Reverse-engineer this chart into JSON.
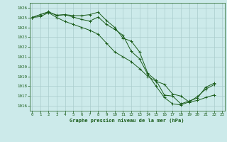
{
  "title": "Graphe pression niveau de la mer (hPa)",
  "bg_color": "#cceaea",
  "grid_color": "#aacccc",
  "line_color": "#1a5c1a",
  "ylim": [
    1015.5,
    1026.5
  ],
  "xlim": [
    -0.3,
    23.3
  ],
  "ytick_values": [
    1016,
    1017,
    1018,
    1019,
    1020,
    1021,
    1022,
    1023,
    1024,
    1025,
    1026
  ],
  "xtick_values": [
    0,
    1,
    2,
    3,
    4,
    5,
    6,
    7,
    8,
    9,
    10,
    11,
    12,
    13,
    14,
    15,
    16,
    17,
    18,
    19,
    20,
    21,
    22,
    23
  ],
  "series": [
    [
      1025.0,
      1025.3,
      1025.55,
      1025.25,
      1025.3,
      1025.2,
      1025.2,
      1025.3,
      1025.55,
      1024.7,
      1024.0,
      1022.9,
      1022.6,
      1021.5,
      1019.3,
      1018.6,
      1017.1,
      1017.0,
      1016.2,
      1016.5,
      1016.8,
      1017.9,
      1018.3
    ],
    [
      1025.0,
      1025.3,
      1025.6,
      1025.2,
      1025.3,
      1025.05,
      1024.8,
      1024.65,
      1025.05,
      1024.3,
      1023.8,
      1023.2,
      1021.55,
      1020.8,
      1019.2,
      1018.0,
      1016.85,
      1016.2,
      1016.1,
      1016.4,
      1016.55,
      1016.85,
      1017.1
    ],
    [
      1025.0,
      1025.1,
      1025.5,
      1025.0,
      1024.6,
      1024.3,
      1024.0,
      1023.7,
      1023.3,
      1022.4,
      1021.5,
      1021.0,
      1020.5,
      1019.8,
      1019.0,
      1018.5,
      1018.2,
      1017.2,
      1017.0,
      1016.4,
      1016.95,
      1017.7,
      1018.15
    ]
  ]
}
